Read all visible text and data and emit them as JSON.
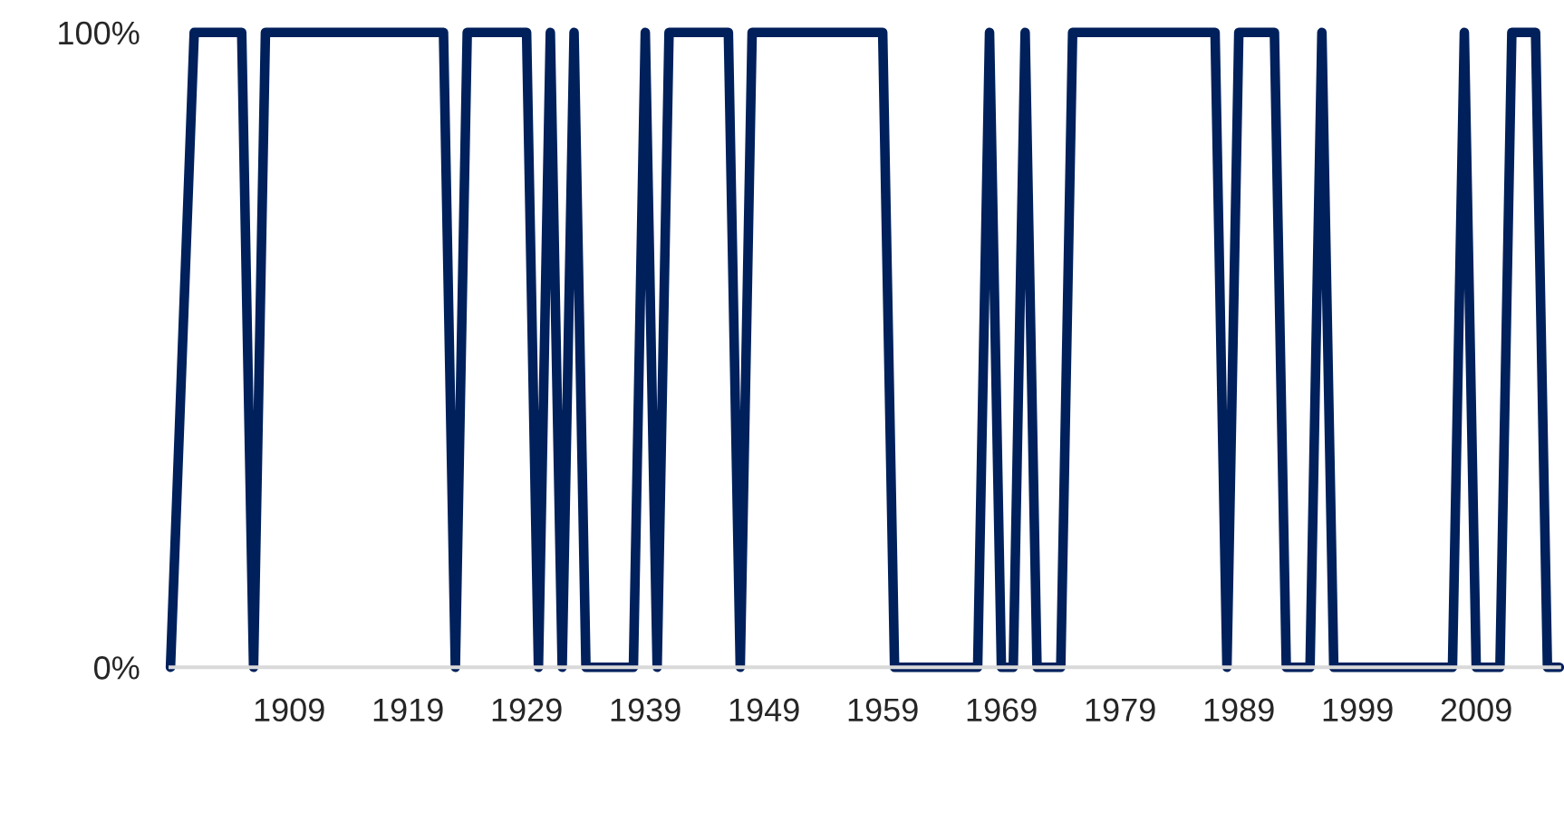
{
  "chart_data": {
    "type": "line",
    "x": [
      1899,
      1901,
      1905,
      1906,
      1907,
      1922,
      1923,
      1924,
      1929,
      1930,
      1931,
      1932,
      1933,
      1934,
      1938,
      1939,
      1940,
      1941,
      1946,
      1947,
      1948,
      1959,
      1960,
      1967,
      1968,
      1969,
      1970,
      1971,
      1972,
      1974,
      1975,
      1987,
      1988,
      1989,
      1992,
      1993,
      1995,
      1996,
      1997,
      2007,
      2008,
      2009,
      2011,
      2012,
      2014,
      2015,
      2016
    ],
    "series": [
      {
        "color": "#00205b",
        "values": [
          0,
          100,
          100,
          0,
          100,
          100,
          0,
          100,
          100,
          0,
          100,
          0,
          100,
          0,
          0,
          100,
          0,
          100,
          100,
          0,
          100,
          100,
          0,
          0,
          100,
          0,
          0,
          100,
          0,
          0,
          100,
          100,
          0,
          100,
          100,
          0,
          0,
          100,
          0,
          0,
          100,
          0,
          0,
          100,
          100,
          0,
          0
        ]
      }
    ],
    "xlim": [
      1899,
      2016
    ],
    "xticks": [
      1909,
      1919,
      1929,
      1939,
      1949,
      1959,
      1969,
      1979,
      1989,
      1999,
      2009
    ],
    "ylim": [
      0,
      100
    ],
    "yticks": [
      {
        "value": 0,
        "label": "0%"
      },
      {
        "value": 100,
        "label": "100%"
      }
    ],
    "grid": false,
    "marker": "none",
    "line_style": "solid"
  }
}
